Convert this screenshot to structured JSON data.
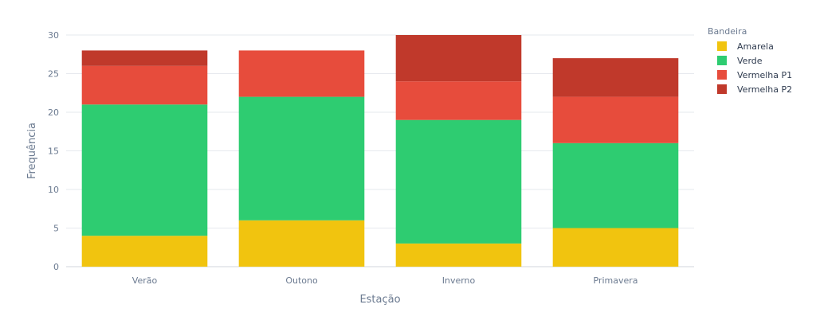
{
  "chart_data": {
    "type": "bar",
    "stacked": true,
    "xlabel": "Estação",
    "ylabel": "Frequência",
    "categories": [
      "Verão",
      "Outono",
      "Inverno",
      "Primavera"
    ],
    "ylim": [
      0,
      30
    ],
    "yticks": [
      0,
      5,
      10,
      15,
      20,
      25,
      30
    ],
    "grid": true,
    "legend_title": "Bandeira",
    "legend_position": "right",
    "series": [
      {
        "name": "Amarela",
        "color": "#f1c40f",
        "values": [
          4,
          6,
          3,
          5
        ]
      },
      {
        "name": "Verde",
        "color": "#2ecc71",
        "values": [
          17,
          16,
          16,
          11
        ]
      },
      {
        "name": "Vermelha P1",
        "color": "#e74c3c",
        "values": [
          5,
          6,
          5,
          6
        ]
      },
      {
        "name": "Vermelha P2",
        "color": "#c0392b",
        "values": [
          2,
          0,
          6,
          5
        ]
      }
    ]
  }
}
